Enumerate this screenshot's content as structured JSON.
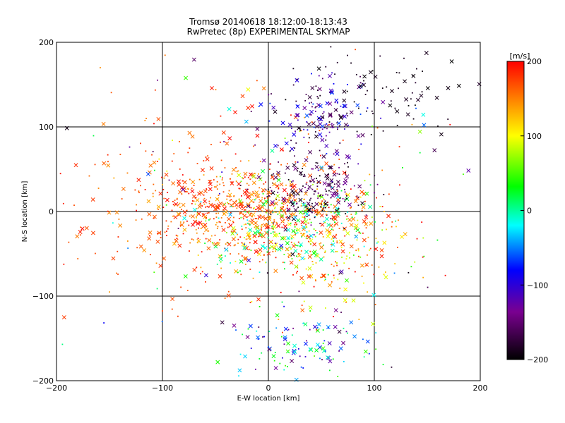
{
  "chart_data": {
    "type": "scatter",
    "title": "Tromsø 20140618 18:12:00-18:13:43",
    "subtitle": "RwPretec (8p) EXPERIMENTAL SKYMAP",
    "xlabel": "E-W location [km]",
    "ylabel": "N-S location [km]",
    "xlim": [
      -200,
      200
    ],
    "ylim": [
      -200,
      200
    ],
    "x_ticks": [
      "-200",
      "-100",
      "0",
      "100",
      "200"
    ],
    "y_ticks": [
      "-200",
      "-100",
      "0",
      "100",
      "200"
    ],
    "grid": true,
    "grid_values": [
      -100,
      0,
      100
    ],
    "markers": "small dots and x crosses, color-coded by velocity",
    "colorbar": {
      "label": "[m/s]",
      "range": [
        -200,
        200
      ],
      "ticks": [
        "200",
        "100",
        "0",
        "-100",
        "-200"
      ],
      "colors": [
        "#000000",
        "#7a0090",
        "#0000ff",
        "#00ffff",
        "#00ff00",
        "#ffff00",
        "#ff0000"
      ]
    },
    "clusters": [
      {
        "cx": -20,
        "cy": 0,
        "sx": 55,
        "sy": 28,
        "n": 600,
        "velocity_range": [
          130,
          200
        ]
      },
      {
        "cx": 25,
        "cy": -20,
        "sx": 40,
        "sy": 25,
        "n": 260,
        "velocity_range": [
          -30,
          120
        ]
      },
      {
        "cx": 40,
        "cy": 25,
        "sx": 25,
        "sy": 18,
        "n": 200,
        "velocity_range": [
          -200,
          -130
        ]
      },
      {
        "cx": 50,
        "cy": 110,
        "sx": 25,
        "sy": 25,
        "n": 160,
        "velocity_range": [
          -200,
          -60
        ]
      },
      {
        "cx": 120,
        "cy": 140,
        "sx": 40,
        "sy": 25,
        "n": 70,
        "velocity_range": [
          -200,
          -180
        ]
      },
      {
        "cx": 30,
        "cy": -160,
        "sx": 35,
        "sy": 20,
        "n": 110,
        "velocity_range": [
          -160,
          60
        ]
      },
      {
        "cx": -70,
        "cy": 10,
        "sx": 70,
        "sy": 70,
        "n": 180,
        "velocity_range": [
          140,
          200
        ]
      },
      {
        "cx": 60,
        "cy": -60,
        "sx": 40,
        "sy": 30,
        "n": 120,
        "velocity_range": [
          80,
          200
        ]
      },
      {
        "cx": 0,
        "cy": 0,
        "sx": 110,
        "sy": 110,
        "n": 160,
        "velocity_range": [
          -200,
          200
        ]
      }
    ]
  }
}
